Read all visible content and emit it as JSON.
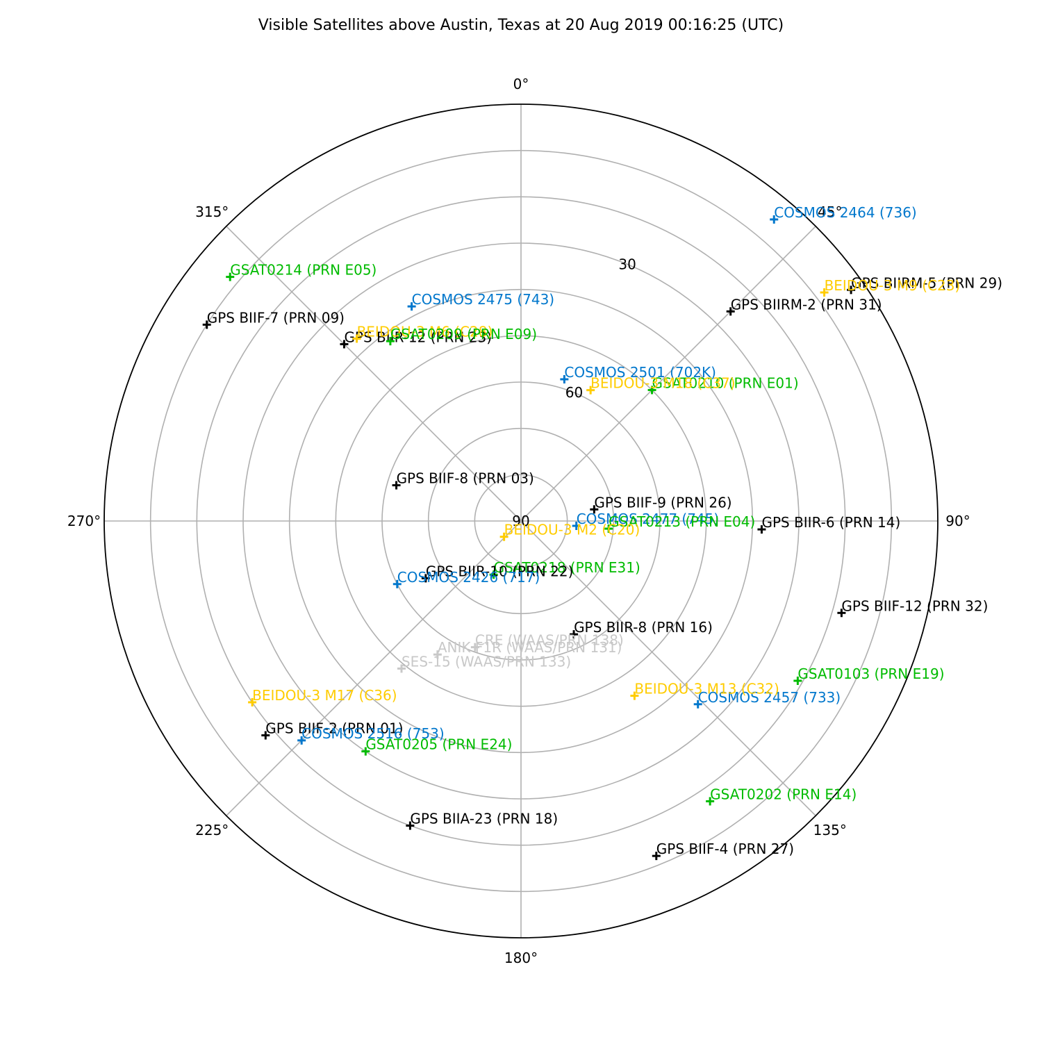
{
  "chart_data": {
    "type": "scatter",
    "projection": "polar",
    "title": "Visible Satellites above Austin, Texas at 20 Aug 2019 00:16:25 (UTC)",
    "theta_zero_location": "N",
    "theta_direction": "clockwise",
    "r_axis": "elevation (degrees)",
    "r_range": [
      0,
      90
    ],
    "r_inverted": true,
    "grid": true,
    "theta_tick_labels": [
      "0°",
      "45°",
      "90°",
      "135°",
      "180°",
      "225°",
      "270°",
      "315°"
    ],
    "r_tick_labels": [
      "30",
      "60",
      "90"
    ],
    "marker": "plus",
    "colors": {
      "GPS": "#000000",
      "GLONASS": "#0077cc",
      "Galileo": "#00bb00",
      "BeiDou": "#ffcc00",
      "WAAS": "#c8c8c8"
    },
    "points": [
      {
        "label": "COSMOS 2464 (736)",
        "az": 40,
        "el": 5,
        "color": "#0077cc"
      },
      {
        "label": "GPS BIIRM-5 (PRN 29)",
        "az": 55,
        "el": 3,
        "color": "#000000"
      },
      {
        "label": "BEIDOU-3 M9 (C23)",
        "az": 53,
        "el": 8,
        "color": "#ffcc00"
      },
      {
        "label": "GPS BIIRM-2 (PRN 31)",
        "az": 45,
        "el": 26,
        "color": "#000000"
      },
      {
        "label": "COSMOS 2475 (743)",
        "az": 333,
        "el": 38,
        "color": "#0077cc"
      },
      {
        "label": "GPS BIIR-12 (PRN 23)",
        "az": 315,
        "el": 36,
        "color": "#000000"
      },
      {
        "label": "BEIDOU-3 M6 (C28)",
        "az": 318,
        "el": 37,
        "color": "#ffcc00"
      },
      {
        "label": "GSAT0209 (PRN E09)",
        "az": 324,
        "el": 42,
        "color": "#00bb00"
      },
      {
        "label": "GSAT0214 (PRN E05)",
        "az": 310,
        "el": 8,
        "color": "#00bb00"
      },
      {
        "label": "GPS BIIF-7  (PRN 09)",
        "az": 302,
        "el": 10,
        "color": "#000000"
      },
      {
        "label": "COSMOS 2501 (702K)",
        "az": 17,
        "el": 58,
        "color": "#0077cc"
      },
      {
        "label": "GSAT0210 (PRN E01)",
        "az": 45,
        "el": 50,
        "color": "#00bb00"
      },
      {
        "label": "BEIDOU-3 M18 (C37)",
        "az": 28,
        "el": 58,
        "color": "#ffcc00"
      },
      {
        "label": "GPS BIIF-8  (PRN 03)",
        "az": 286,
        "el": 62,
        "color": "#000000"
      },
      {
        "label": "GPS BIIF-9  (PRN 26)",
        "az": 81,
        "el": 74,
        "color": "#000000"
      },
      {
        "label": "COSMOS 2477 (745)",
        "az": 95,
        "el": 78,
        "color": "#0077cc"
      },
      {
        "label": "GSAT0213 (PRN E04)",
        "az": 95,
        "el": 71,
        "color": "#00bb00"
      },
      {
        "label": "GPS BIIR-6  (PRN 14)",
        "az": 92,
        "el": 38,
        "color": "#000000"
      },
      {
        "label": "BEIDOU-3 M2 (C20)",
        "az": 227,
        "el": 85,
        "color": "#ffcc00"
      },
      {
        "label": "GSAT0218 (PRN E31)",
        "az": 207,
        "el": 77,
        "color": "#00bb00"
      },
      {
        "label": "GPS BIIR-10 (PRN 22)",
        "az": 239,
        "el": 66,
        "color": "#000000"
      },
      {
        "label": "COSMOS 2426 (717)",
        "az": 243,
        "el": 60,
        "color": "#0077cc"
      },
      {
        "label": "GPS BIIF-12  (PRN 32)",
        "az": 106,
        "el": 18,
        "color": "#000000"
      },
      {
        "label": "GPS BIIR-8  (PRN 16)",
        "az": 155,
        "el": 63,
        "color": "#000000"
      },
      {
        "label": "SES-15 (WAAS/PRN 133)",
        "az": 219,
        "el": 49,
        "color": "#c8c8c8"
      },
      {
        "label": "ANIK F1R (WAAS/PRN 131)",
        "az": 212,
        "el": 56,
        "color": "#c8c8c8"
      },
      {
        "label": "CRE (WAAS/PRN 138)",
        "az": 200,
        "el": 61,
        "color": "#c8c8c8"
      },
      {
        "label": "GSAT0103 (PRN E19)",
        "az": 120,
        "el": 21,
        "color": "#00bb00"
      },
      {
        "label": "COSMOS 2457 (733)",
        "az": 136,
        "el": 35,
        "color": "#0077cc"
      },
      {
        "label": "BEIDOU-3 M13 (C32)",
        "az": 147,
        "el": 45,
        "color": "#ffcc00"
      },
      {
        "label": "BEIDOU-3 M17 (C36)",
        "az": 236,
        "el": 20,
        "color": "#ffcc00"
      },
      {
        "label": "GPS BIIF-2  (PRN 01)",
        "az": 230,
        "el": 18,
        "color": "#000000"
      },
      {
        "label": "COSMOS 2516 (753)",
        "az": 225,
        "el": 23,
        "color": "#0077cc"
      },
      {
        "label": "GSAT0205 (PRN E24)",
        "az": 214,
        "el": 30,
        "color": "#00bb00"
      },
      {
        "label": "GSAT0202 (PRN E14)",
        "az": 146,
        "el": 17,
        "color": "#00bb00"
      },
      {
        "label": "GPS BIIA-23 (PRN 18)",
        "az": 200,
        "el": 20,
        "color": "#000000"
      },
      {
        "label": "GPS BIIF-4  (PRN 27)",
        "az": 158,
        "el": 12,
        "color": "#000000"
      }
    ]
  }
}
